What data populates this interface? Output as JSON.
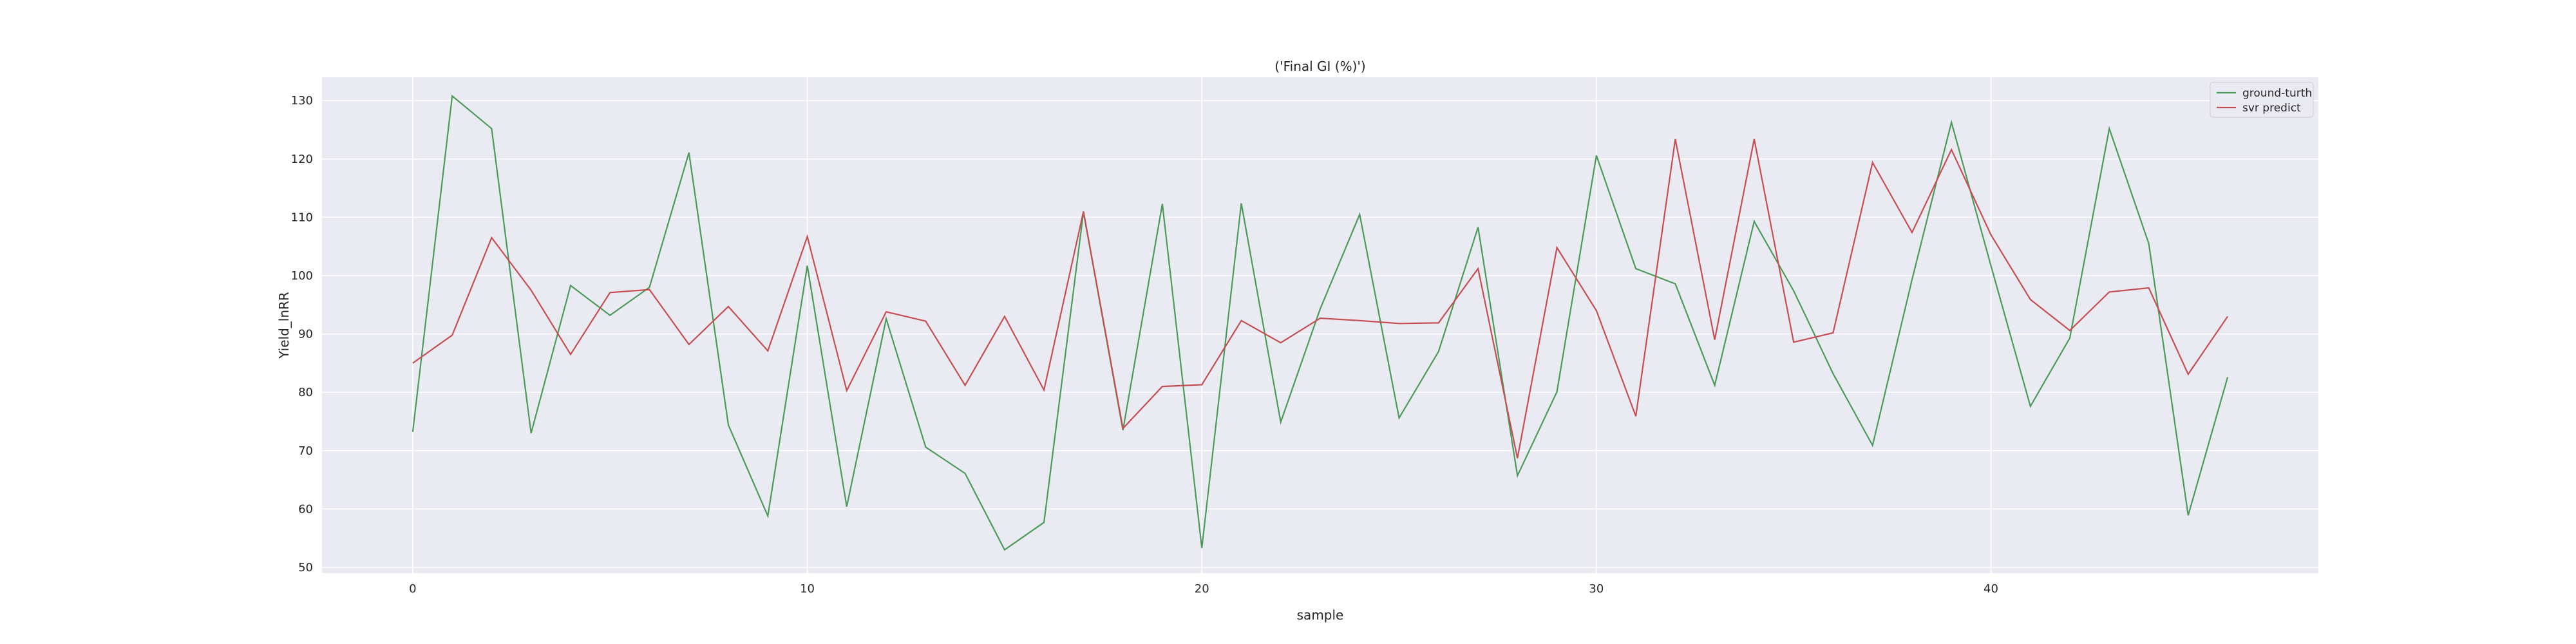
{
  "chart_data": {
    "type": "line",
    "title": "('Final GI (%)')",
    "xlabel": "sample",
    "ylabel": "Yield_lnRR",
    "xlim": [
      -2.3,
      48.3
    ],
    "ylim": [
      49,
      134
    ],
    "xticks": [
      0,
      10,
      20,
      30,
      40
    ],
    "yticks": [
      50,
      60,
      70,
      80,
      90,
      100,
      110,
      120,
      130
    ],
    "grid": true,
    "legend_position": "upper right",
    "x": [
      0,
      1,
      2,
      3,
      4,
      5,
      6,
      7,
      8,
      9,
      10,
      11,
      12,
      13,
      14,
      15,
      16,
      17,
      18,
      19,
      20,
      21,
      22,
      23,
      24,
      25,
      26,
      27,
      28,
      29,
      30,
      31,
      32,
      33,
      34,
      35,
      36,
      37,
      38,
      39,
      40,
      41,
      42,
      43,
      44,
      45,
      46
    ],
    "series": [
      {
        "name": "ground-turth",
        "color": "#4c9a5b",
        "values": [
          73.2,
          130.8,
          125.2,
          73.0,
          98.3,
          93.2,
          98.0,
          121.1,
          74.4,
          58.8,
          101.7,
          60.4,
          92.6,
          70.6,
          66.1,
          53.0,
          57.7,
          110.9,
          73.5,
          112.3,
          53.3,
          112.4,
          74.9,
          94.3,
          110.5,
          75.6,
          87.0,
          108.3,
          65.7,
          80.1,
          120.6,
          101.2,
          98.6,
          81.2,
          109.3,
          97.4,
          83.2,
          70.9,
          99.3,
          126.3,
          101.7,
          77.6,
          89.3,
          125.2,
          105.5,
          58.9,
          82.6
        ]
      },
      {
        "name": "svr predict",
        "color": "#c44e52",
        "values": [
          85.0,
          89.8,
          106.5,
          97.5,
          86.5,
          97.1,
          97.6,
          88.2,
          94.7,
          87.1,
          106.7,
          80.3,
          93.8,
          92.2,
          81.2,
          93.0,
          80.4,
          111.0,
          73.8,
          81.0,
          81.3,
          92.3,
          88.5,
          92.7,
          92.3,
          91.8,
          91.9,
          101.2,
          68.7,
          104.8,
          94.0,
          75.9,
          123.4,
          89.0,
          123.4,
          88.6,
          90.2,
          119.4,
          107.4,
          121.6,
          107.0,
          95.9,
          90.6,
          97.2,
          97.9,
          83.1,
          93.0
        ]
      }
    ]
  },
  "colors": {
    "plot_background": "#eaeaf2",
    "grid": "#ffffff"
  }
}
